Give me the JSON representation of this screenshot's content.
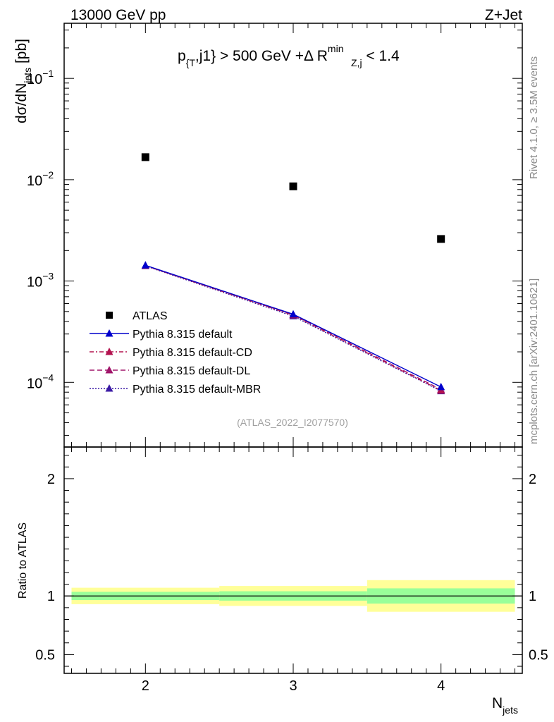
{
  "header": {
    "left": "13000 GeV pp",
    "right": "Z+Jet"
  },
  "watermark": {
    "rivet": "Rivet 4.1.0, ≥ 3.5M events",
    "mcplots": "mcplots.cern.ch [arXiv:2401.10621]"
  },
  "colors": {
    "atlas": "#000000",
    "default": "#0000cc",
    "cd": "#b3124f",
    "dl": "#a0156a",
    "mbr": "#3b1aa5",
    "band_inner": "#99ff99",
    "band_outer": "#ffff99"
  },
  "chart_data": [
    {
      "type": "scatter",
      "title": "p_{T},j1} > 500 GeV +Δ R_{Z,j}^{min} < 1.4",
      "title_parts": {
        "a": "p",
        "a_sub": "{T",
        "b": ",j1} > 500 GeV +Δ R",
        "c_sup": "min",
        "c_sub": "Z,j",
        "d": " < 1.4"
      },
      "analysis_id": "(ATLAS_2022_I2077570)",
      "xlabel": "N",
      "xlabel_sub": "jets",
      "ylabel": "dσ/dN",
      "ylabel_sub": "jets",
      "ylabel_unit": " [pb]",
      "yscale": "log",
      "ylim": [
        2.3e-05,
        0.35
      ],
      "xlim": [
        1.45,
        4.55
      ],
      "x_ticks": [
        "2",
        "3",
        "4"
      ],
      "y_ticks": [
        {
          "value": 0.1,
          "base": "10",
          "exp": "−1"
        },
        {
          "value": 0.01,
          "base": "10",
          "exp": "−2"
        },
        {
          "value": 0.001,
          "base": "10",
          "exp": "−3"
        },
        {
          "value": 0.0001,
          "base": "10",
          "exp": "−4"
        }
      ],
      "series": [
        {
          "name": "ATLAS",
          "key": "atlas",
          "style": "marker",
          "x": [
            2,
            3,
            4
          ],
          "values": [
            0.0167,
            0.0086,
            0.0026
          ]
        },
        {
          "name": "Pythia 8.315 default",
          "key": "default",
          "style": "solid",
          "x": [
            2,
            3,
            4
          ],
          "values": [
            0.00143,
            0.00047,
            9e-05
          ]
        },
        {
          "name": "Pythia 8.315 default-CD",
          "key": "cd",
          "style": "dashdot",
          "x": [
            2,
            3,
            4
          ],
          "values": [
            0.00142,
            0.00046,
            8.3e-05
          ]
        },
        {
          "name": "Pythia 8.315 default-DL",
          "key": "dl",
          "style": "dashed",
          "x": [
            2,
            3,
            4
          ],
          "values": [
            0.00142,
            0.000465,
            8.5e-05
          ]
        },
        {
          "name": "Pythia 8.315 default-MBR",
          "key": "mbr",
          "style": "dotted",
          "x": [
            2,
            3,
            4
          ],
          "values": [
            0.00141,
            0.00045,
            8.2e-05
          ]
        }
      ]
    },
    {
      "type": "area",
      "ylabel": "Ratio to ATLAS",
      "ylim": [
        0.34,
        2.27
      ],
      "y_ticks": [
        "0.5",
        "1",
        "2"
      ],
      "reference": 1.0,
      "bins": [
        {
          "xlo": 1.5,
          "xhi": 2.5,
          "inner": [
            0.965,
            1.035
          ],
          "outer": [
            0.93,
            1.07
          ]
        },
        {
          "xlo": 2.5,
          "xhi": 3.5,
          "inner": [
            0.96,
            1.04
          ],
          "outer": [
            0.915,
            1.085
          ]
        },
        {
          "xlo": 3.5,
          "xhi": 4.5,
          "inner": [
            0.935,
            1.065
          ],
          "outer": [
            0.865,
            1.135
          ]
        }
      ]
    }
  ]
}
